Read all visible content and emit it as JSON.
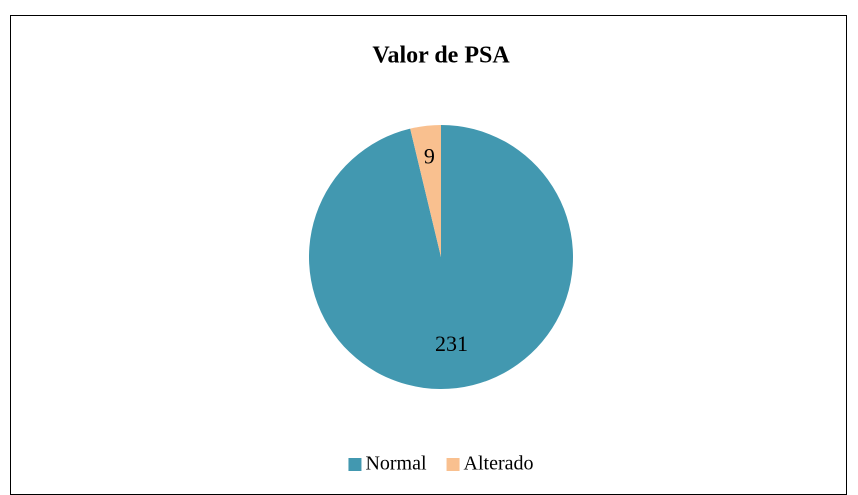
{
  "chart_data": {
    "type": "pie",
    "title": "Valor de PSA",
    "categories": [
      "Normal",
      "Alterado"
    ],
    "values": [
      231,
      9
    ],
    "colors": [
      "#4298b0",
      "#f9c08f"
    ],
    "legend": "bottom"
  }
}
